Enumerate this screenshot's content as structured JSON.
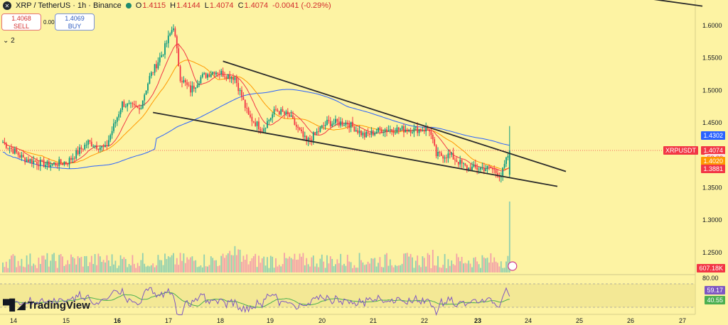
{
  "header": {
    "symbol": "XRP / TetherUS · 1h · Binance",
    "logo_icon": "xrp-logo-icon",
    "ohlc": {
      "o_label": "O",
      "o": "1.4115",
      "h_label": "H",
      "h": "1.4144",
      "l_label": "L",
      "l": "1.4074",
      "c_label": "C",
      "c": "1.4074",
      "change": "-0.0041 (-0.29%)"
    },
    "sell_price": "1.4068",
    "sell_label": "SELL",
    "buy_price": "1.4069",
    "buy_label": "BUY",
    "spread": "0.0001",
    "indicators_count": "2"
  },
  "price_axis": {
    "ticks": [
      "1.6000",
      "1.5500",
      "1.5000",
      "1.4500",
      "1.3500",
      "1.3000",
      "1.2500"
    ],
    "tags": [
      {
        "text": "1.4302",
        "color": "#2962ff"
      },
      {
        "text": "XRPUSDT",
        "color": "#f23645"
      },
      {
        "text": "1.4074",
        "color": "#f23645"
      },
      {
        "text": "58:28",
        "color": "#f23645"
      },
      {
        "text": "1.4020",
        "color": "#ff9800"
      },
      {
        "text": "1.3881",
        "color": "#f23645"
      },
      {
        "text": "607.18K",
        "color": "#f23645"
      },
      {
        "text": "59.17",
        "color": "#7e57c2"
      },
      {
        "text": "40.55",
        "color": "#4caf50"
      }
    ],
    "rsi_top": "80.00"
  },
  "time_axis": [
    "14",
    "15",
    "16",
    "17",
    "18",
    "19",
    "20",
    "21",
    "22",
    "23",
    "24",
    "25",
    "26",
    "27"
  ],
  "brand": "TradingView",
  "brand_icon": "tradingview-logo-icon",
  "flash_icon": "lightning-icon",
  "colors": {
    "up": "#089981",
    "down": "#f23645",
    "ma_fast": "#f23645",
    "ma_mid": "#ff9800",
    "ma_slow": "#2962ff",
    "rsi": "#7e57c2",
    "rsi_ma": "#4caf50",
    "bg": "#fdf3a3"
  },
  "chart_data": {
    "type": "candlestick",
    "interval": "1h",
    "ylim": [
      1.22,
      1.64
    ],
    "x_ticks": [
      "14",
      "15",
      "16",
      "17",
      "18",
      "19",
      "20",
      "21",
      "22",
      "23",
      "24",
      "25",
      "26",
      "27"
    ],
    "anchors": [
      {
        "t": 0,
        "p": 1.42
      },
      {
        "t": 12,
        "p": 1.395
      },
      {
        "t": 26,
        "p": 1.385
      },
      {
        "t": 38,
        "p": 1.39
      },
      {
        "t": 50,
        "p": 1.42
      },
      {
        "t": 60,
        "p": 1.41
      },
      {
        "t": 70,
        "p": 1.48
      },
      {
        "t": 80,
        "p": 1.47
      },
      {
        "t": 86,
        "p": 1.52
      },
      {
        "t": 94,
        "p": 1.56
      },
      {
        "t": 100,
        "p": 1.6
      },
      {
        "t": 104,
        "p": 1.52
      },
      {
        "t": 110,
        "p": 1.5
      },
      {
        "t": 116,
        "p": 1.52
      },
      {
        "t": 124,
        "p": 1.53
      },
      {
        "t": 136,
        "p": 1.52
      },
      {
        "t": 144,
        "p": 1.46
      },
      {
        "t": 152,
        "p": 1.44
      },
      {
        "t": 160,
        "p": 1.47
      },
      {
        "t": 168,
        "p": 1.46
      },
      {
        "t": 178,
        "p": 1.42
      },
      {
        "t": 190,
        "p": 1.45
      },
      {
        "t": 202,
        "p": 1.45
      },
      {
        "t": 212,
        "p": 1.43
      },
      {
        "t": 222,
        "p": 1.44
      },
      {
        "t": 236,
        "p": 1.44
      },
      {
        "t": 250,
        "p": 1.44
      },
      {
        "t": 254,
        "p": 1.4
      },
      {
        "t": 262,
        "p": 1.4
      },
      {
        "t": 272,
        "p": 1.38
      },
      {
        "t": 286,
        "p": 1.38
      },
      {
        "t": 292,
        "p": 1.368
      },
      {
        "t": 297,
        "p": 1.407
      }
    ],
    "trendlines": [
      {
        "x1": 129,
        "p1": 1.545,
        "x2": 330,
        "p2": 1.375
      },
      {
        "x1": 88,
        "p1": 1.466,
        "x2": 325,
        "p2": 1.352
      },
      {
        "x1": 355,
        "p1": 1.65,
        "x2": 410,
        "p2": 1.63
      }
    ],
    "rsi_range": [
      30,
      80
    ],
    "current_price": 1.4074
  }
}
